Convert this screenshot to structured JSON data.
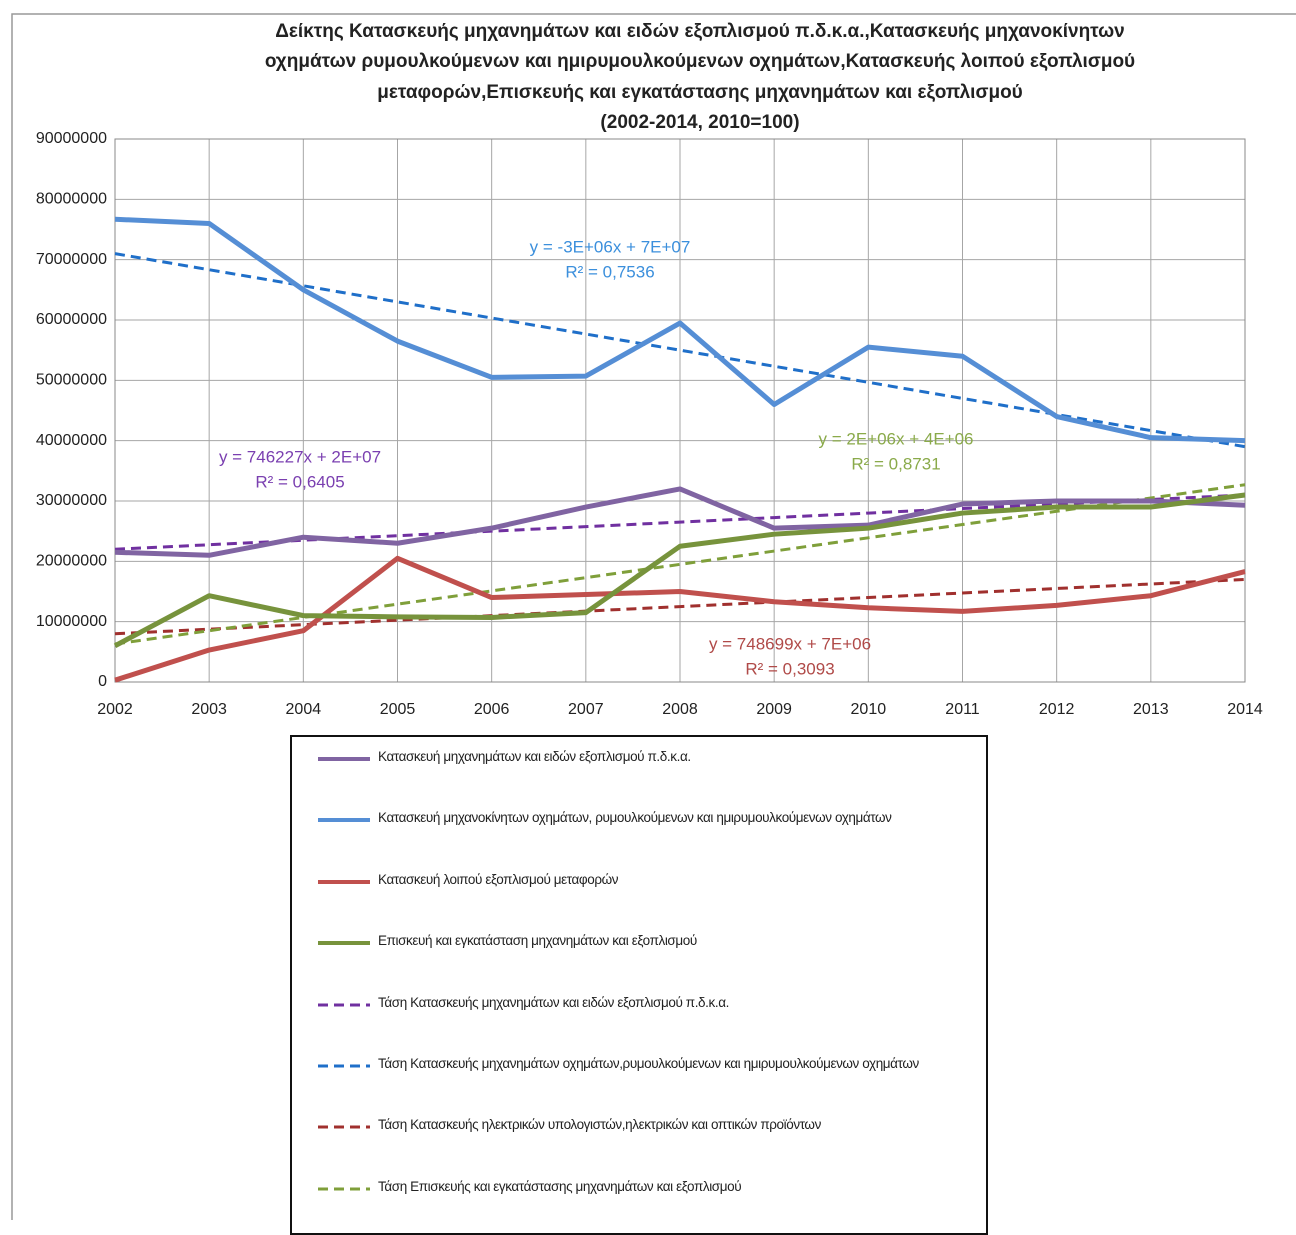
{
  "chart_data": {
    "type": "line",
    "title": [
      "Δείκτης Κατασκευής μηχανημάτων και ειδών εξοπλισμού π.δ.κ.α.,Κατασκευής μηχανοκίνητων",
      "οχημάτων ρυμουλκούμενων και ημιρυμουλκούμενων οχημάτων,Κατασκευής λοιπού εξοπλισμού",
      "μεταφορών,Επισκευής και εγκατάστασης μηχανημάτων  και εξοπλισμού",
      "(2002-2014, 2010=100)"
    ],
    "categories": [
      "2002",
      "2003",
      "2004",
      "2005",
      "2006",
      "2007",
      "2008",
      "2009",
      "2010",
      "2011",
      "2012",
      "2013",
      "2014"
    ],
    "ylim": [
      0,
      90000000
    ],
    "yticks": [
      0,
      10000000,
      20000000,
      30000000,
      40000000,
      50000000,
      60000000,
      70000000,
      80000000,
      90000000
    ],
    "grid": true,
    "legend": "bottom",
    "series": [
      {
        "name": "Κατασκευή μηχανημάτων και ειδών εξοπλισμού π.δ.κ.α.",
        "color": "#8064a2",
        "dashed": false,
        "values": [
          21500000,
          21000000,
          24000000,
          23000000,
          25500000,
          29000000,
          32000000,
          25500000,
          26000000,
          29500000,
          30000000,
          30000000,
          29300000
        ]
      },
      {
        "name": "Κατασκευή μηχανοκίνητων οχημάτων, ρυμουλκούμενων και ημιρυμουλκούμενων οχημάτων",
        "color": "#558ed5",
        "dashed": false,
        "values": [
          76700000,
          76000000,
          65000000,
          56500000,
          50500000,
          50700000,
          59500000,
          46000000,
          55500000,
          54000000,
          44000000,
          40500000,
          40000000
        ]
      },
      {
        "name": "Κατασκευή λοιπού εξοπλισμού μεταφορών",
        "color": "#c0504d",
        "dashed": false,
        "values": [
          300000,
          5300000,
          8500000,
          20500000,
          14000000,
          14500000,
          15000000,
          13300000,
          12300000,
          11700000,
          12700000,
          14300000,
          18300000
        ]
      },
      {
        "name": "Επισκευή και εγκατάσταση μηχανημάτων και εξοπλισμού",
        "color": "#77933c",
        "dashed": false,
        "values": [
          6000000,
          14300000,
          11000000,
          10800000,
          10700000,
          11500000,
          22500000,
          24500000,
          25500000,
          28000000,
          29000000,
          29000000,
          31000000
        ]
      },
      {
        "name": "Τάση Κατασκευής μηχανημάτων και ειδών εξοπλισμού π.δ.κ.α.",
        "color": "#7030a0",
        "dashed": true,
        "values": [
          22000000,
          22750000,
          23500000,
          24250000,
          25000000,
          25750000,
          26500000,
          27250000,
          28000000,
          28750000,
          29500000,
          30250000,
          31000000
        ]
      },
      {
        "name": "Τάση Κατασκευής μηχανημάτων οχημάτων,ρυμουλκούμενων και ημιρυμουλκούμενων οχημάτων",
        "color": "#1f6fc9",
        "dashed": true,
        "values": [
          71000000,
          68330000,
          65670000,
          63000000,
          60330000,
          57670000,
          55000000,
          52330000,
          49670000,
          47000000,
          44330000,
          41670000,
          39000000
        ]
      },
      {
        "name": "Τάση Κατασκευής ηλεκτρικών υπολογιστών,ηλεκτρικών και οπτικών προϊόντων",
        "color": "#a0302e",
        "dashed": true,
        "values": [
          8000000,
          8750000,
          9500000,
          10250000,
          11000000,
          11750000,
          12500000,
          13250000,
          14000000,
          14750000,
          15500000,
          16250000,
          17000000
        ]
      },
      {
        "name": "Τάση Επισκευής και εγκατάστασης μηχανημάτων και εξοπλισμού",
        "color": "#7f9f3a",
        "dashed": true,
        "values": [
          6300000,
          8500000,
          10700000,
          12900000,
          15100000,
          17300000,
          19500000,
          21700000,
          23900000,
          26100000,
          28300000,
          30500000,
          32700000
        ]
      }
    ],
    "annotations": [
      {
        "equation": "y = -3E+06x + 7E+07",
        "r2": "R² = 0,7536",
        "color": "#3b8fdc"
      },
      {
        "equation": "y = 746227x + 2E+07",
        "r2": "R² = 0,6405",
        "color": "#7a3fb0"
      },
      {
        "equation": "y = 2E+06x + 4E+06",
        "r2": "R² = 0,8731",
        "color": "#8aaa4a"
      },
      {
        "equation": "y = 748699x + 7E+06",
        "r2": "R² = 0,3093",
        "color": "#b04a48"
      }
    ]
  }
}
